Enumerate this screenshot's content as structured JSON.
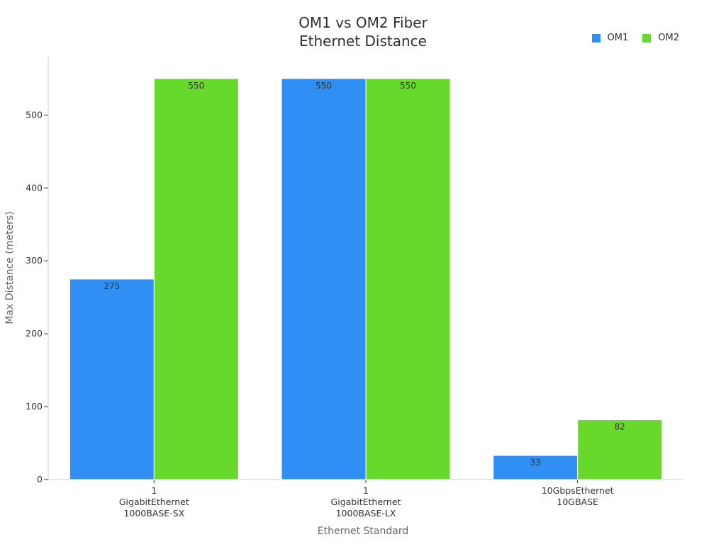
{
  "chart_data": {
    "type": "bar",
    "title": [
      "OM1 vs OM2 Fiber",
      "Ethernet Distance"
    ],
    "xlabel": "Ethernet Standard",
    "ylabel": "Max Distance (meters)",
    "categories": [
      [
        "1",
        "GigabitEthernet",
        "1000BASE-SX"
      ],
      [
        "1",
        "GigabitEthernet",
        "1000BASE-LX"
      ],
      [
        "10GbpsEthernet",
        "10GBASE"
      ]
    ],
    "series": [
      {
        "name": "OM1",
        "color": "#2f8ff5",
        "values": [
          275,
          550,
          33
        ]
      },
      {
        "name": "OM2",
        "color": "#66d92a",
        "values": [
          550,
          550,
          82
        ]
      }
    ],
    "yticks": [
      0,
      100,
      200,
      300,
      400,
      500
    ],
    "ylim": [
      0,
      580
    ],
    "legend_position": "top-right",
    "grid": false
  }
}
